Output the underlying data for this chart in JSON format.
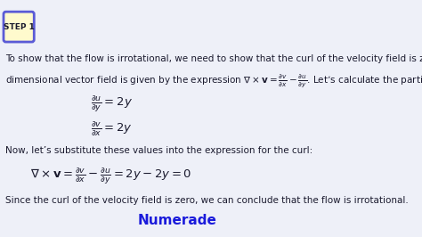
{
  "background_color": "#eef0f8",
  "step_label": "STEP 1",
  "step_box_facecolor": "#fffacd",
  "step_box_edgecolor": "#5b5bd6",
  "text_color": "#1a1a2e",
  "numerade_color": "#1a1adb",
  "line1": "To show that the flow is irrotational, we need to show that the curl of the velocity field is zero. The curl of a two-",
  "line2": "dimensional vector field is given by the expression $\\nabla \\times \\mathbf{v} = \\frac{\\partial v}{\\partial x} - \\frac{\\partial u}{\\partial y}$. Let’s calculate the partial derivatives:",
  "eq1": "$\\frac{\\partial u}{\\partial y} = 2y$",
  "eq2": "$\\frac{\\partial v}{\\partial x} = 2y$",
  "line3": "Now, let’s substitute these values into the expression for the curl:",
  "eq3": "$\\nabla \\times \\mathbf{v} = \\frac{\\partial v}{\\partial x} - \\frac{\\partial u}{\\partial y} = 2y - 2y = 0$",
  "line4": "Since the curl of the velocity field is zero, we can conclude that the flow is irrotational.",
  "numerade_text": "Numerade",
  "font_size_text": 7.5,
  "font_size_eq": 9.5,
  "font_size_step": 6.5,
  "font_size_numerade": 11
}
